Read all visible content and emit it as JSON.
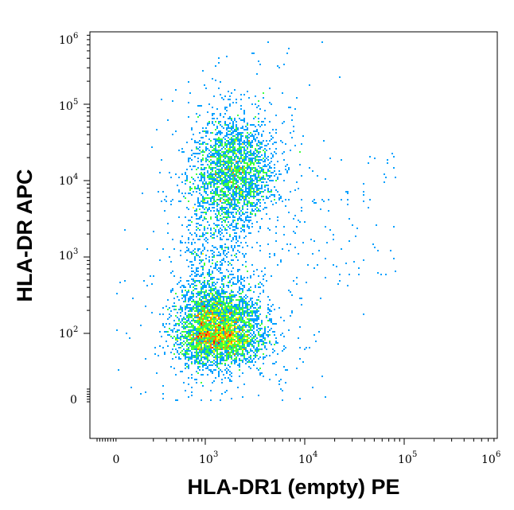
{
  "chart_data": {
    "type": "scatter",
    "style": "density-dot-plot",
    "x_scale": "biexponential",
    "y_scale": "biexponential",
    "xlabel": "HLA-DR1 (empty) PE",
    "ylabel": "HLA-DR APC",
    "x_ticks": [
      {
        "base": "0",
        "exp": ""
      },
      {
        "base": "10",
        "exp": "3"
      },
      {
        "base": "10",
        "exp": "4"
      },
      {
        "base": "10",
        "exp": "5"
      },
      {
        "base": "10",
        "exp": "6"
      }
    ],
    "y_ticks": [
      {
        "base": "0",
        "exp": ""
      },
      {
        "base": "10",
        "exp": "2"
      },
      {
        "base": "10",
        "exp": "3"
      },
      {
        "base": "10",
        "exp": "4"
      },
      {
        "base": "10",
        "exp": "5"
      },
      {
        "base": "10",
        "exp": "6"
      }
    ],
    "density_colors": [
      "#0000ff",
      "#00a0ff",
      "#00e0c0",
      "#40ff40",
      "#ffff00",
      "#ff8000",
      "#ff0000"
    ],
    "populations": [
      {
        "label": "",
        "x_center": 1300,
        "y_center": 110,
        "x_spread_decades": 0.22,
        "y_spread_decades": 0.28,
        "relative_count": 1.0
      },
      {
        "label": "",
        "x_center": 2000,
        "y_center": 15000,
        "x_spread_decades": 0.2,
        "y_spread_decades": 0.35,
        "relative_count": 0.55
      }
    ]
  }
}
